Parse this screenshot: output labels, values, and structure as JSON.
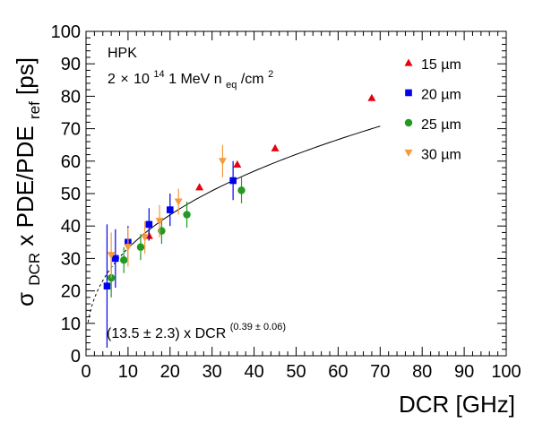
{
  "chart_data": {
    "type": "scatter",
    "title": "",
    "xlabel": "DCR [GHz]",
    "ylabel": {
      "main": "σ",
      "sub1": "DCR",
      "mid": " x PDE/PDE",
      "sub2": "ref",
      "end": " [ps]"
    },
    "xlim": [
      0,
      100
    ],
    "ylim": [
      0,
      100
    ],
    "xticks": [
      0,
      10,
      20,
      30,
      40,
      50,
      60,
      70,
      80,
      90,
      100
    ],
    "yticks": [
      0,
      10,
      20,
      30,
      40,
      50,
      60,
      70,
      80,
      90,
      100
    ],
    "grid": false,
    "legend_position": "top-right",
    "annotations": {
      "vendor": "HPK",
      "fluence": {
        "prefix": "2",
        "times": "×",
        "base": "10",
        "exp": "14",
        "mid": " 1 MeV n",
        "sub": "eq",
        "after": "/cm",
        "sup": "2"
      },
      "fit": {
        "prefix": "(13.5",
        "pm": " ± ",
        "err": "2.3) x DCR",
        "exp": "(0.39 ± 0.06)"
      }
    },
    "fit_curve": {
      "amplitude": 13.5,
      "exponent": 0.39,
      "solid_range": [
        10,
        70
      ],
      "dashed_range": [
        0.5,
        10
      ]
    },
    "series": [
      {
        "name": "15 µm",
        "marker": "triangle-up",
        "color": "#e8000b",
        "points": [
          {
            "x": 15,
            "y": 37,
            "err": 1.5
          },
          {
            "x": 27,
            "y": 52,
            "err": 1.0
          },
          {
            "x": 36,
            "y": 59,
            "err": 1.0
          },
          {
            "x": 45,
            "y": 64,
            "err": 0.8
          },
          {
            "x": 68,
            "y": 79.5,
            "err": 0.8
          }
        ]
      },
      {
        "name": "20 µm",
        "marker": "square",
        "color": "#0000ee",
        "points": [
          {
            "x": 5,
            "y": 21.5,
            "err": 19
          },
          {
            "x": 7,
            "y": 30,
            "err": 9
          },
          {
            "x": 10,
            "y": 35,
            "err": 5
          },
          {
            "x": 15,
            "y": 40.5,
            "err": 5
          },
          {
            "x": 20,
            "y": 45,
            "err": 5
          },
          {
            "x": 35,
            "y": 54,
            "err": 6
          }
        ]
      },
      {
        "name": "25 µm",
        "marker": "circle",
        "color": "#229922",
        "points": [
          {
            "x": 6,
            "y": 24,
            "err": 6
          },
          {
            "x": 9,
            "y": 29.5,
            "err": 4
          },
          {
            "x": 13,
            "y": 33.5,
            "err": 4
          },
          {
            "x": 18,
            "y": 38.5,
            "err": 4
          },
          {
            "x": 24,
            "y": 43.5,
            "err": 4
          },
          {
            "x": 37,
            "y": 51,
            "err": 4
          }
        ]
      },
      {
        "name": "30 µm",
        "marker": "triangle-down",
        "color": "#f59a3c",
        "points": [
          {
            "x": 6,
            "y": 31,
            "err": 7
          },
          {
            "x": 10,
            "y": 33.5,
            "err": 6
          },
          {
            "x": 14,
            "y": 36.5,
            "err": 5
          },
          {
            "x": 17.5,
            "y": 41.5,
            "err": 5
          },
          {
            "x": 22,
            "y": 47.5,
            "err": 4
          },
          {
            "x": 32.5,
            "y": 60,
            "err": 5
          }
        ]
      }
    ]
  }
}
